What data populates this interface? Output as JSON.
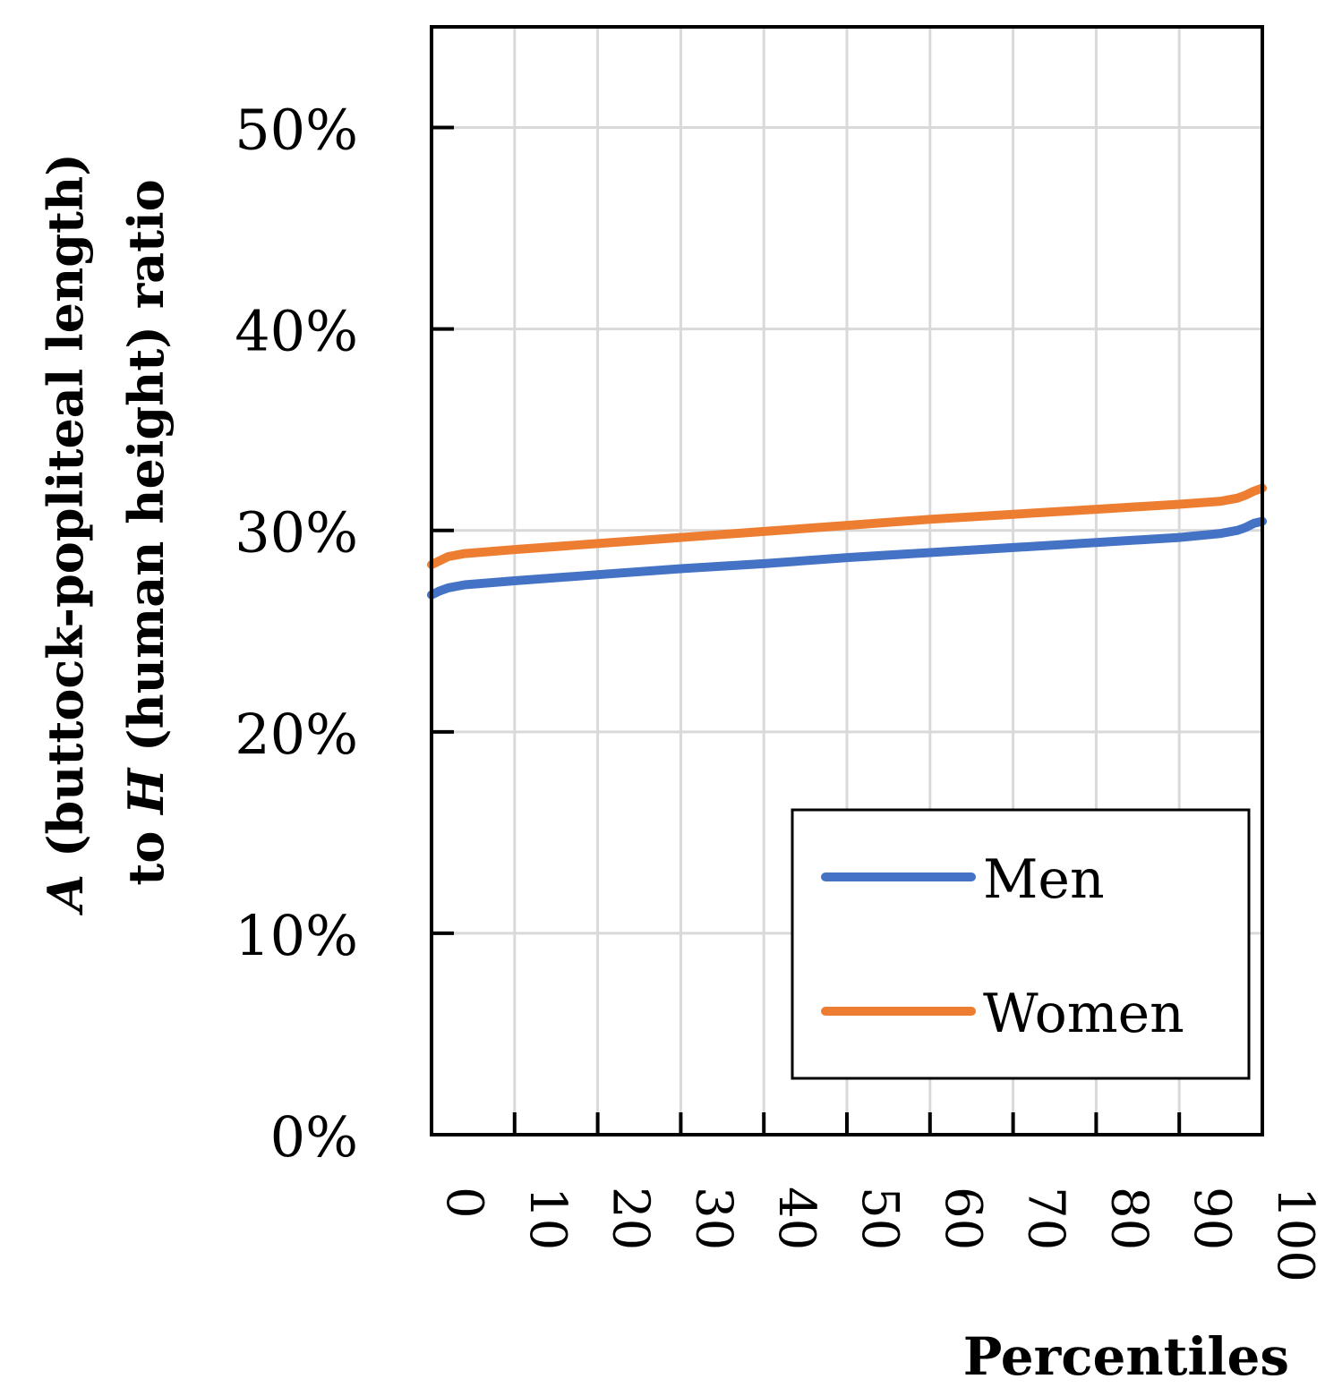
{
  "chart_data": {
    "type": "line",
    "xlabel": "Percentiles",
    "ylabel": {
      "line1_var": "A",
      "line1_rest": " (buttock-popliteal length)",
      "line2_start": "to ",
      "line2_var": "H",
      "line2_rest": " (human height) ratio"
    },
    "xlim": [
      0,
      100
    ],
    "ylim": [
      0,
      55
    ],
    "x_ticks": [
      0,
      10,
      20,
      30,
      40,
      50,
      60,
      70,
      80,
      90,
      100
    ],
    "x_tick_labels": [
      "0",
      "10",
      "20",
      "30",
      "40",
      "50",
      "60",
      "70",
      "80",
      "90",
      "100"
    ],
    "y_ticks": [
      0,
      10,
      20,
      30,
      40,
      50
    ],
    "y_tick_labels": [
      "0%",
      "10%",
      "20%",
      "30%",
      "40%",
      "50%"
    ],
    "grid": true,
    "legend_position": "bottom-right",
    "x": [
      0,
      1,
      2,
      4,
      10,
      20,
      30,
      40,
      50,
      60,
      70,
      80,
      90,
      95,
      97,
      98,
      99,
      100
    ],
    "series": [
      {
        "name": "Men",
        "color": "#4472C4",
        "values": [
          26.8,
          27.0,
          27.15,
          27.3,
          27.5,
          27.8,
          28.1,
          28.35,
          28.65,
          28.9,
          29.15,
          29.4,
          29.65,
          29.85,
          30.0,
          30.15,
          30.35,
          30.45
        ]
      },
      {
        "name": "Women",
        "color": "#ED7D31",
        "values": [
          28.3,
          28.5,
          28.7,
          28.85,
          29.05,
          29.35,
          29.65,
          29.95,
          30.25,
          30.55,
          30.8,
          31.05,
          31.3,
          31.45,
          31.6,
          31.75,
          31.95,
          32.1
        ]
      }
    ]
  }
}
